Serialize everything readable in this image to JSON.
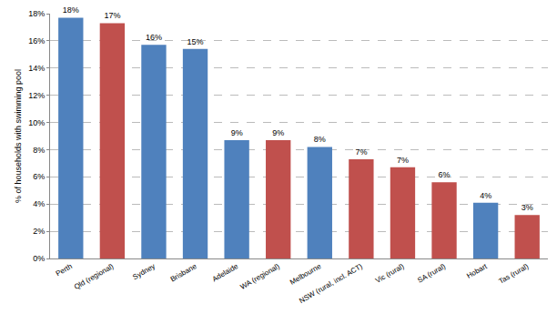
{
  "chart_data": {
    "type": "bar",
    "y_label": "% of households with swimming pool",
    "categories": [
      "Perth",
      "Qld (regional)",
      "Sydney",
      "Brisbane",
      "Adelaide",
      "WA (regional)",
      "Melbourne",
      "NSW (rural, incl. ACT)",
      "Vic (rural)",
      "SA (rural)",
      "Hobart",
      "Tas (rural)"
    ],
    "values": [
      17.7,
      17.3,
      15.7,
      15.4,
      8.7,
      8.7,
      8.2,
      7.3,
      6.7,
      5.6,
      4.1,
      3.2
    ],
    "value_labels": [
      "18%",
      "17%",
      "16%",
      "15%",
      "9%",
      "9%",
      "8%",
      "7%",
      "7%",
      "6%",
      "4%",
      "3%"
    ],
    "colors": [
      "#4f81bd",
      "#c0504d",
      "#4f81bd",
      "#4f81bd",
      "#4f81bd",
      "#c0504d",
      "#4f81bd",
      "#c0504d",
      "#c0504d",
      "#c0504d",
      "#4f81bd",
      "#c0504d"
    ],
    "ylim": [
      0,
      18
    ],
    "yticks": [
      {
        "value": 0,
        "label": "0%"
      },
      {
        "value": 2,
        "label": "2%"
      },
      {
        "value": 4,
        "label": "4%"
      },
      {
        "value": 6,
        "label": "6%"
      },
      {
        "value": 8,
        "label": "8%"
      },
      {
        "value": 10,
        "label": "10%"
      },
      {
        "value": 12,
        "label": "12%"
      },
      {
        "value": 14,
        "label": "14%"
      },
      {
        "value": 16,
        "label": "16%"
      },
      {
        "value": 18,
        "label": "18%"
      }
    ],
    "grid": true,
    "data_labels": true
  }
}
